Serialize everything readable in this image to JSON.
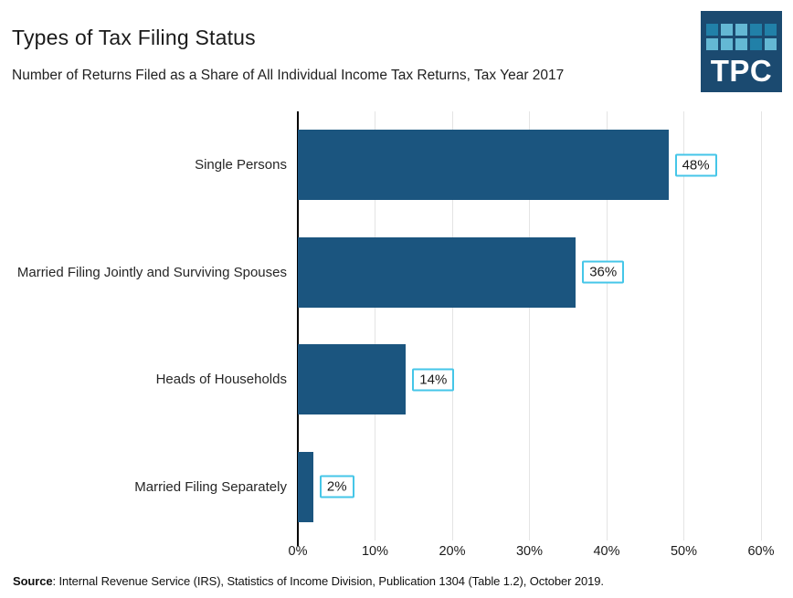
{
  "header": {
    "title": "Types of Tax Filing Status",
    "subtitle": "Number of Returns Filed as a Share of All Individual Income Tax Returns, Tax Year 2017"
  },
  "logo": {
    "text": "TPC",
    "bg_color": "#1b4a70",
    "square_color_mid": "#2180a8",
    "square_color_light": "#64b8d4",
    "grid_pattern": [
      [
        "mid",
        "light",
        "light",
        "mid",
        "mid"
      ],
      [
        "light",
        "light",
        "light",
        "mid",
        "light"
      ]
    ]
  },
  "chart_data": {
    "type": "bar",
    "orientation": "horizontal",
    "title": "Types of Tax Filing Status",
    "subtitle": "Number of Returns Filed as a Share of All Individual Income Tax Returns, Tax Year 2017",
    "categories": [
      "Single Persons",
      "Married Filing Jointly and Surviving Spouses",
      "Heads of Households",
      "Married Filing Separately"
    ],
    "values": [
      48,
      36,
      14,
      2
    ],
    "value_labels": [
      "48%",
      "36%",
      "14%",
      "2%"
    ],
    "x_ticks": [
      "0%",
      "10%",
      "20%",
      "30%",
      "40%",
      "50%",
      "60%"
    ],
    "xlim": [
      0,
      60
    ],
    "grid": true,
    "legend": "none",
    "bar_color": "#1b557f",
    "label_box_border_color": "#45c6e8",
    "gridline_color": "#e4e4e4"
  },
  "footer": {
    "source_label": "Source",
    "source_text": ": Internal Revenue Service (IRS), Statistics of Income Division, Publication 1304 (Table 1.2), October 2019."
  }
}
